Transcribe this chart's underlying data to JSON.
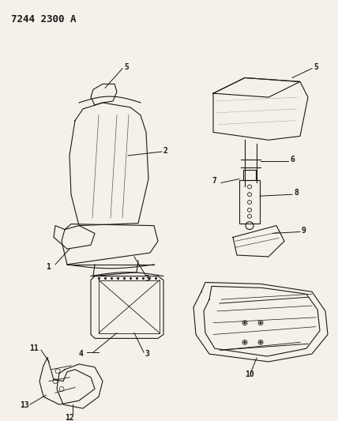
{
  "title": "7244 2300 A",
  "background_color": "#f5f0e8",
  "line_color": "#1a1a1a",
  "label_color": "#1a1a1a",
  "title_fontsize": 9,
  "label_fontsize": 8,
  "figsize": [
    4.28,
    5.33
  ],
  "dpi": 100
}
